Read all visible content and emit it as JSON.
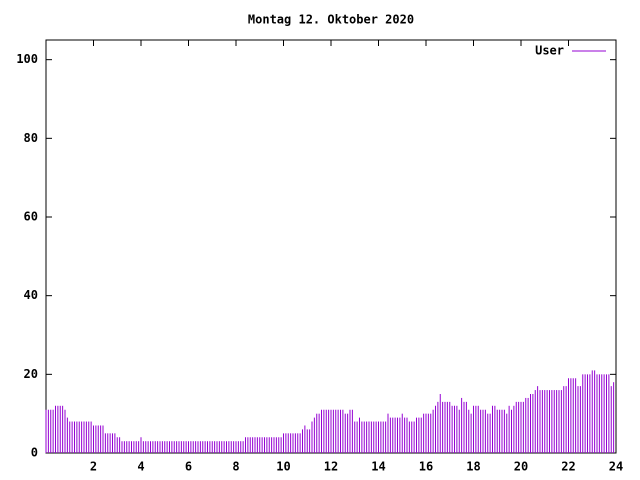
{
  "chart_data": {
    "type": "impulses",
    "title": "Montag 12. Oktober 2020",
    "series": [
      {
        "name": "User",
        "color": "#9400d3",
        "values": [
          11,
          11,
          11,
          11,
          12,
          12,
          12,
          12,
          11,
          9,
          8,
          8,
          8,
          8,
          8,
          8,
          8,
          8,
          8,
          8,
          7,
          7,
          7,
          7,
          7,
          5,
          5,
          5,
          5,
          5,
          4,
          4,
          3,
          3,
          3,
          3,
          3,
          3,
          3,
          3,
          4,
          3,
          3,
          3,
          3,
          3,
          3,
          3,
          3,
          3,
          3,
          3,
          3,
          3,
          3,
          3,
          3,
          3,
          3,
          3,
          3,
          3,
          3,
          3,
          3,
          3,
          3,
          3,
          3,
          3,
          3,
          3,
          3,
          3,
          3,
          3,
          3,
          3,
          3,
          3,
          3,
          3,
          3,
          3,
          4,
          4,
          4,
          4,
          4,
          4,
          4,
          4,
          4,
          4,
          4,
          4,
          4,
          4,
          4,
          4,
          5,
          5,
          5,
          5,
          5,
          5,
          5,
          5,
          6,
          7,
          6,
          6,
          8,
          9,
          10,
          10,
          11,
          11,
          11,
          11,
          11,
          11,
          11,
          11,
          11,
          11,
          10,
          10,
          11,
          11,
          8,
          8,
          9,
          8,
          8,
          8,
          8,
          8,
          8,
          8,
          8,
          8,
          8,
          8,
          10,
          9,
          9,
          9,
          9,
          9,
          10,
          9,
          9,
          8,
          8,
          8,
          9,
          9,
          9,
          10,
          10,
          10,
          10,
          11,
          12,
          13,
          15,
          13,
          13,
          13,
          13,
          12,
          12,
          12,
          11,
          14,
          13,
          13,
          11,
          10,
          12,
          12,
          12,
          11,
          11,
          11,
          10,
          10,
          12,
          12,
          11,
          11,
          11,
          11,
          10,
          12,
          11,
          12,
          13,
          13,
          13,
          13,
          14,
          14,
          15,
          15,
          16,
          17,
          16,
          16,
          16,
          16,
          16,
          16,
          16,
          16,
          16,
          16,
          17,
          17,
          19,
          19,
          19,
          19,
          17,
          17,
          20,
          20,
          20,
          20,
          21,
          21,
          20,
          20,
          20,
          20,
          20,
          20,
          17,
          18
        ]
      }
    ],
    "x": [
      0,
      0.1,
      0.2,
      0.3,
      0.4,
      0.5,
      0.6,
      0.7,
      0.8,
      0.9,
      1,
      1.1,
      1.2,
      1.3,
      1.4,
      1.5,
      1.6,
      1.7,
      1.8,
      1.9,
      2,
      2.1,
      2.2,
      2.3,
      2.4,
      2.5,
      2.6,
      2.7,
      2.8,
      2.9,
      3,
      3.1,
      3.2,
      3.3,
      3.4,
      3.5,
      3.6,
      3.7,
      3.8,
      3.9,
      4,
      4.1,
      4.2,
      4.3,
      4.4,
      4.5,
      4.6,
      4.7,
      4.8,
      4.9,
      5,
      5.1,
      5.2,
      5.3,
      5.4,
      5.5,
      5.6,
      5.7,
      5.8,
      5.9,
      6,
      6.1,
      6.2,
      6.3,
      6.4,
      6.5,
      6.6,
      6.7,
      6.8,
      6.9,
      7,
      7.1,
      7.2,
      7.3,
      7.4,
      7.5,
      7.6,
      7.7,
      7.8,
      7.9,
      8,
      8.1,
      8.2,
      8.3,
      8.4,
      8.5,
      8.6,
      8.7,
      8.8,
      8.9,
      9,
      9.1,
      9.2,
      9.3,
      9.4,
      9.5,
      9.6,
      9.7,
      9.8,
      9.9,
      10,
      10.1,
      10.2,
      10.3,
      10.4,
      10.5,
      10.6,
      10.7,
      10.8,
      10.9,
      11,
      11.1,
      11.2,
      11.3,
      11.4,
      11.5,
      11.6,
      11.7,
      11.8,
      11.9,
      12,
      12.1,
      12.2,
      12.3,
      12.4,
      12.5,
      12.6,
      12.7,
      12.8,
      12.9,
      13,
      13.1,
      13.2,
      13.3,
      13.4,
      13.5,
      13.6,
      13.7,
      13.8,
      13.9,
      14,
      14.1,
      14.2,
      14.3,
      14.4,
      14.5,
      14.6,
      14.7,
      14.8,
      14.9,
      15,
      15.1,
      15.2,
      15.3,
      15.4,
      15.5,
      15.6,
      15.7,
      15.8,
      15.9,
      16,
      16.1,
      16.2,
      16.3,
      16.4,
      16.5,
      16.6,
      16.7,
      16.8,
      16.9,
      17,
      17.1,
      17.2,
      17.3,
      17.4,
      17.5,
      17.6,
      17.7,
      17.8,
      17.9,
      18,
      18.1,
      18.2,
      18.3,
      18.4,
      18.5,
      18.6,
      18.7,
      18.8,
      18.9,
      19,
      19.1,
      19.2,
      19.3,
      19.4,
      19.5,
      19.6,
      19.7,
      19.8,
      19.9,
      20,
      20.1,
      20.2,
      20.3,
      20.4,
      20.5,
      20.6,
      20.7,
      20.8,
      20.9,
      21,
      21.1,
      21.2,
      21.3,
      21.4,
      21.5,
      21.6,
      21.7,
      21.8,
      21.9,
      22,
      22.1,
      22.2,
      22.3,
      22.4,
      22.5,
      22.6,
      22.7,
      22.8,
      22.9,
      23,
      23.1,
      23.2,
      23.3,
      23.4,
      23.5,
      23.6,
      23.7,
      23.8,
      23.9
    ],
    "xlim": [
      0,
      24
    ],
    "xticks": [
      2,
      4,
      6,
      8,
      10,
      12,
      14,
      16,
      18,
      20,
      22,
      24
    ],
    "ylim": [
      0,
      105
    ],
    "yticks": [
      0,
      20,
      40,
      60,
      80,
      100
    ],
    "legend": "top-right"
  }
}
